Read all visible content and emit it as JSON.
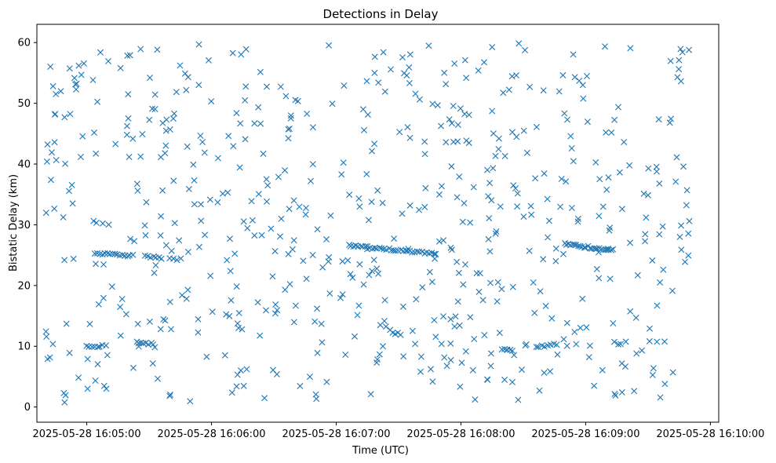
{
  "chart_data": {
    "type": "scatter",
    "title": "Detections in Delay",
    "xlabel": "Time (UTC)",
    "ylabel": "Bistatic Delay (km)",
    "marker": "x",
    "color": "#1f77b4",
    "grid": false,
    "legend": "none",
    "xlim": [
      "2025-05-28 16:04:36",
      "2025-05-28 16:10:04"
    ],
    "ylim": [
      -2.5,
      63
    ],
    "x_ticks": [
      "2025-05-28 16:05:00",
      "2025-05-28 16:06:00",
      "2025-05-28 16:07:00",
      "2025-05-28 16:08:00",
      "2025-05-28 16:09:00",
      "2025-05-28 16:10:00"
    ],
    "y_ticks": [
      "0",
      "10",
      "20",
      "30",
      "40",
      "50",
      "60"
    ],
    "x_start": "2025-05-28 16:04:40",
    "x_end": "2025-05-28 16:09:50",
    "tracks": [
      {
        "start": "2025-05-28 16:05:04",
        "end": "2025-05-28 16:05:22",
        "y0": 25.3,
        "y1": 24.9,
        "n": 16
      },
      {
        "start": "2025-05-28 16:05:28",
        "end": "2025-05-28 16:05:36",
        "y0": 24.8,
        "y1": 24.5,
        "n": 7
      },
      {
        "start": "2025-05-28 16:05:40",
        "end": "2025-05-28 16:05:45",
        "y0": 24.5,
        "y1": 24.3,
        "n": 4
      },
      {
        "start": "2025-05-28 16:07:06",
        "end": "2025-05-28 16:07:48",
        "y0": 26.6,
        "y1": 25.2,
        "n": 38
      },
      {
        "start": "2025-05-28 16:08:50",
        "end": "2025-05-28 16:09:13",
        "y0": 26.8,
        "y1": 25.8,
        "n": 26
      },
      {
        "start": "2025-05-28 16:05:00",
        "end": "2025-05-28 16:05:09",
        "y0": 9.9,
        "y1": 10.1,
        "n": 8
      },
      {
        "start": "2025-05-28 16:05:24",
        "end": "2025-05-28 16:05:32",
        "y0": 10.6,
        "y1": 10.4,
        "n": 8
      },
      {
        "start": "2025-05-28 16:08:20",
        "end": "2025-05-28 16:08:25",
        "y0": 9.4,
        "y1": 9.4,
        "n": 5
      },
      {
        "start": "2025-05-28 16:08:36",
        "end": "2025-05-28 16:08:46",
        "y0": 9.9,
        "y1": 10.3,
        "n": 8
      },
      {
        "start": "2025-05-28 16:07:27",
        "end": "2025-05-28 16:07:31",
        "y0": 12.2,
        "y1": 12.0,
        "n": 4
      }
    ],
    "noise_count": 620,
    "noise_seed": 20250528,
    "y_range": [
      0.5,
      60
    ]
  }
}
